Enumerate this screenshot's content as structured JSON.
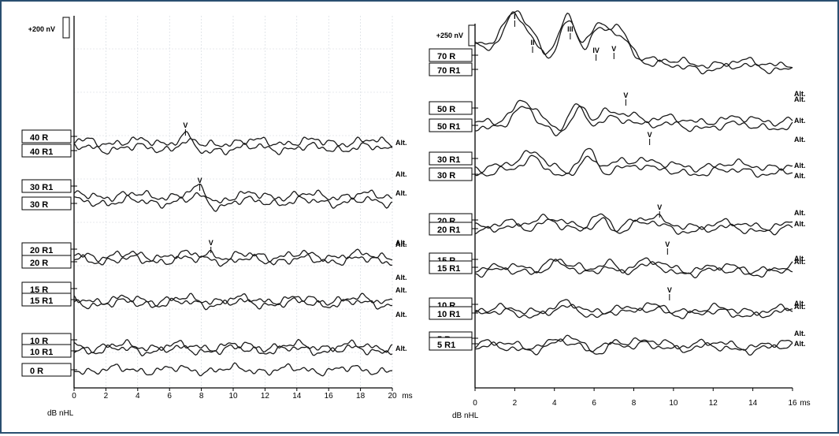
{
  "chart_data": [
    {
      "type": "line",
      "panel": "left",
      "scale_label": "+200 nV",
      "x_unit": "ms",
      "y_label": "dB nHL",
      "xlim": [
        0,
        20
      ],
      "x_ticks": [
        0,
        2,
        4,
        6,
        8,
        10,
        12,
        14,
        16,
        18,
        20
      ],
      "grid": true,
      "alt_label": "Alt.",
      "series": [
        {
          "name": "40 R",
          "baseline": 178,
          "wave_v_ms": 7.0,
          "wave_v_amp": 8
        },
        {
          "name": "40 R1",
          "baseline": 186,
          "wave_v_ms": 7.0,
          "wave_v_amp": 8
        },
        {
          "name": "30 R1",
          "baseline": 246,
          "wave_v_ms": 7.9,
          "wave_v_amp": 9
        },
        {
          "name": "30 R",
          "baseline": 254,
          "wave_v_ms": 7.9,
          "wave_v_amp": 7
        },
        {
          "name": "20 R",
          "baseline": 328,
          "wave_v_ms": 8.6,
          "wave_v_amp": 4
        },
        {
          "name": "20 R1",
          "baseline": 322,
          "wave_v_ms": 8.6,
          "wave_v_amp": 4
        },
        {
          "name": "15 R",
          "baseline": 378
        },
        {
          "name": "15 R1",
          "baseline": 383
        },
        {
          "name": "10 R",
          "baseline": 437
        },
        {
          "name": "10 R1",
          "baseline": 442
        },
        {
          "name": "0 R",
          "baseline": 467
        }
      ],
      "labels_box": [
        [
          "40 R",
          "40 R1"
        ],
        [
          "30 R1",
          "30 R"
        ],
        [
          "20 R1",
          "20 R"
        ],
        [
          "15 R",
          "15 R1"
        ],
        [
          "10 R",
          "10 R1"
        ],
        [
          "0 R"
        ]
      ],
      "peak_marks": [
        {
          "label": "V",
          "x": 7.0
        },
        {
          "label": "V",
          "x": 7.9
        },
        {
          "label": "V",
          "x": 8.6
        }
      ]
    },
    {
      "type": "line",
      "panel": "right",
      "scale_label": "+250 nV",
      "x_unit": "ms",
      "y_label": "dB nHL",
      "xlim": [
        0,
        16
      ],
      "x_ticks": [
        0,
        2,
        4,
        6,
        8,
        10,
        12,
        14,
        16
      ],
      "grid": false,
      "alt_label": "Alt.",
      "series": [
        {
          "name": "70 R",
          "baseline": 78
        },
        {
          "name": "70 R1",
          "baseline": 84
        },
        {
          "name": "50 R",
          "baseline": 150
        },
        {
          "name": "50 R1",
          "baseline": 158
        },
        {
          "name": "30 R1",
          "baseline": 208
        },
        {
          "name": "30 R",
          "baseline": 216
        },
        {
          "name": "20 R",
          "baseline": 283
        },
        {
          "name": "20 R1",
          "baseline": 289
        },
        {
          "name": "15 R",
          "baseline": 338
        },
        {
          "name": "15 R1",
          "baseline": 343
        },
        {
          "name": "10 R",
          "baseline": 391
        },
        {
          "name": "10 R1",
          "baseline": 396
        },
        {
          "name": "5 R",
          "baseline": 435
        },
        {
          "name": "5 R1",
          "baseline": 440
        }
      ],
      "labels_box": [
        [
          "70 R",
          "70 R1"
        ],
        [
          "50 R",
          "50 R1"
        ],
        [
          "30 R1",
          "30 R"
        ],
        [
          "20 R",
          "20 R1"
        ],
        [
          "15 R",
          "15 R1"
        ],
        [
          "10 R",
          "10 R1"
        ],
        [
          "5 R",
          "5 R1"
        ]
      ],
      "peak_marks": [
        {
          "label": "I",
          "x": 2.0
        },
        {
          "label": "II",
          "x": 2.9
        },
        {
          "label": "III",
          "x": 4.8
        },
        {
          "label": "IV",
          "x": 6.1
        },
        {
          "label": "V",
          "x": 7.0
        },
        {
          "label": "V",
          "x": 7.6
        },
        {
          "label": "V",
          "x": 8.8
        },
        {
          "label": "V",
          "x": 9.3
        },
        {
          "label": "V",
          "x": 9.7
        },
        {
          "label": "V",
          "x": 9.8
        }
      ]
    }
  ]
}
